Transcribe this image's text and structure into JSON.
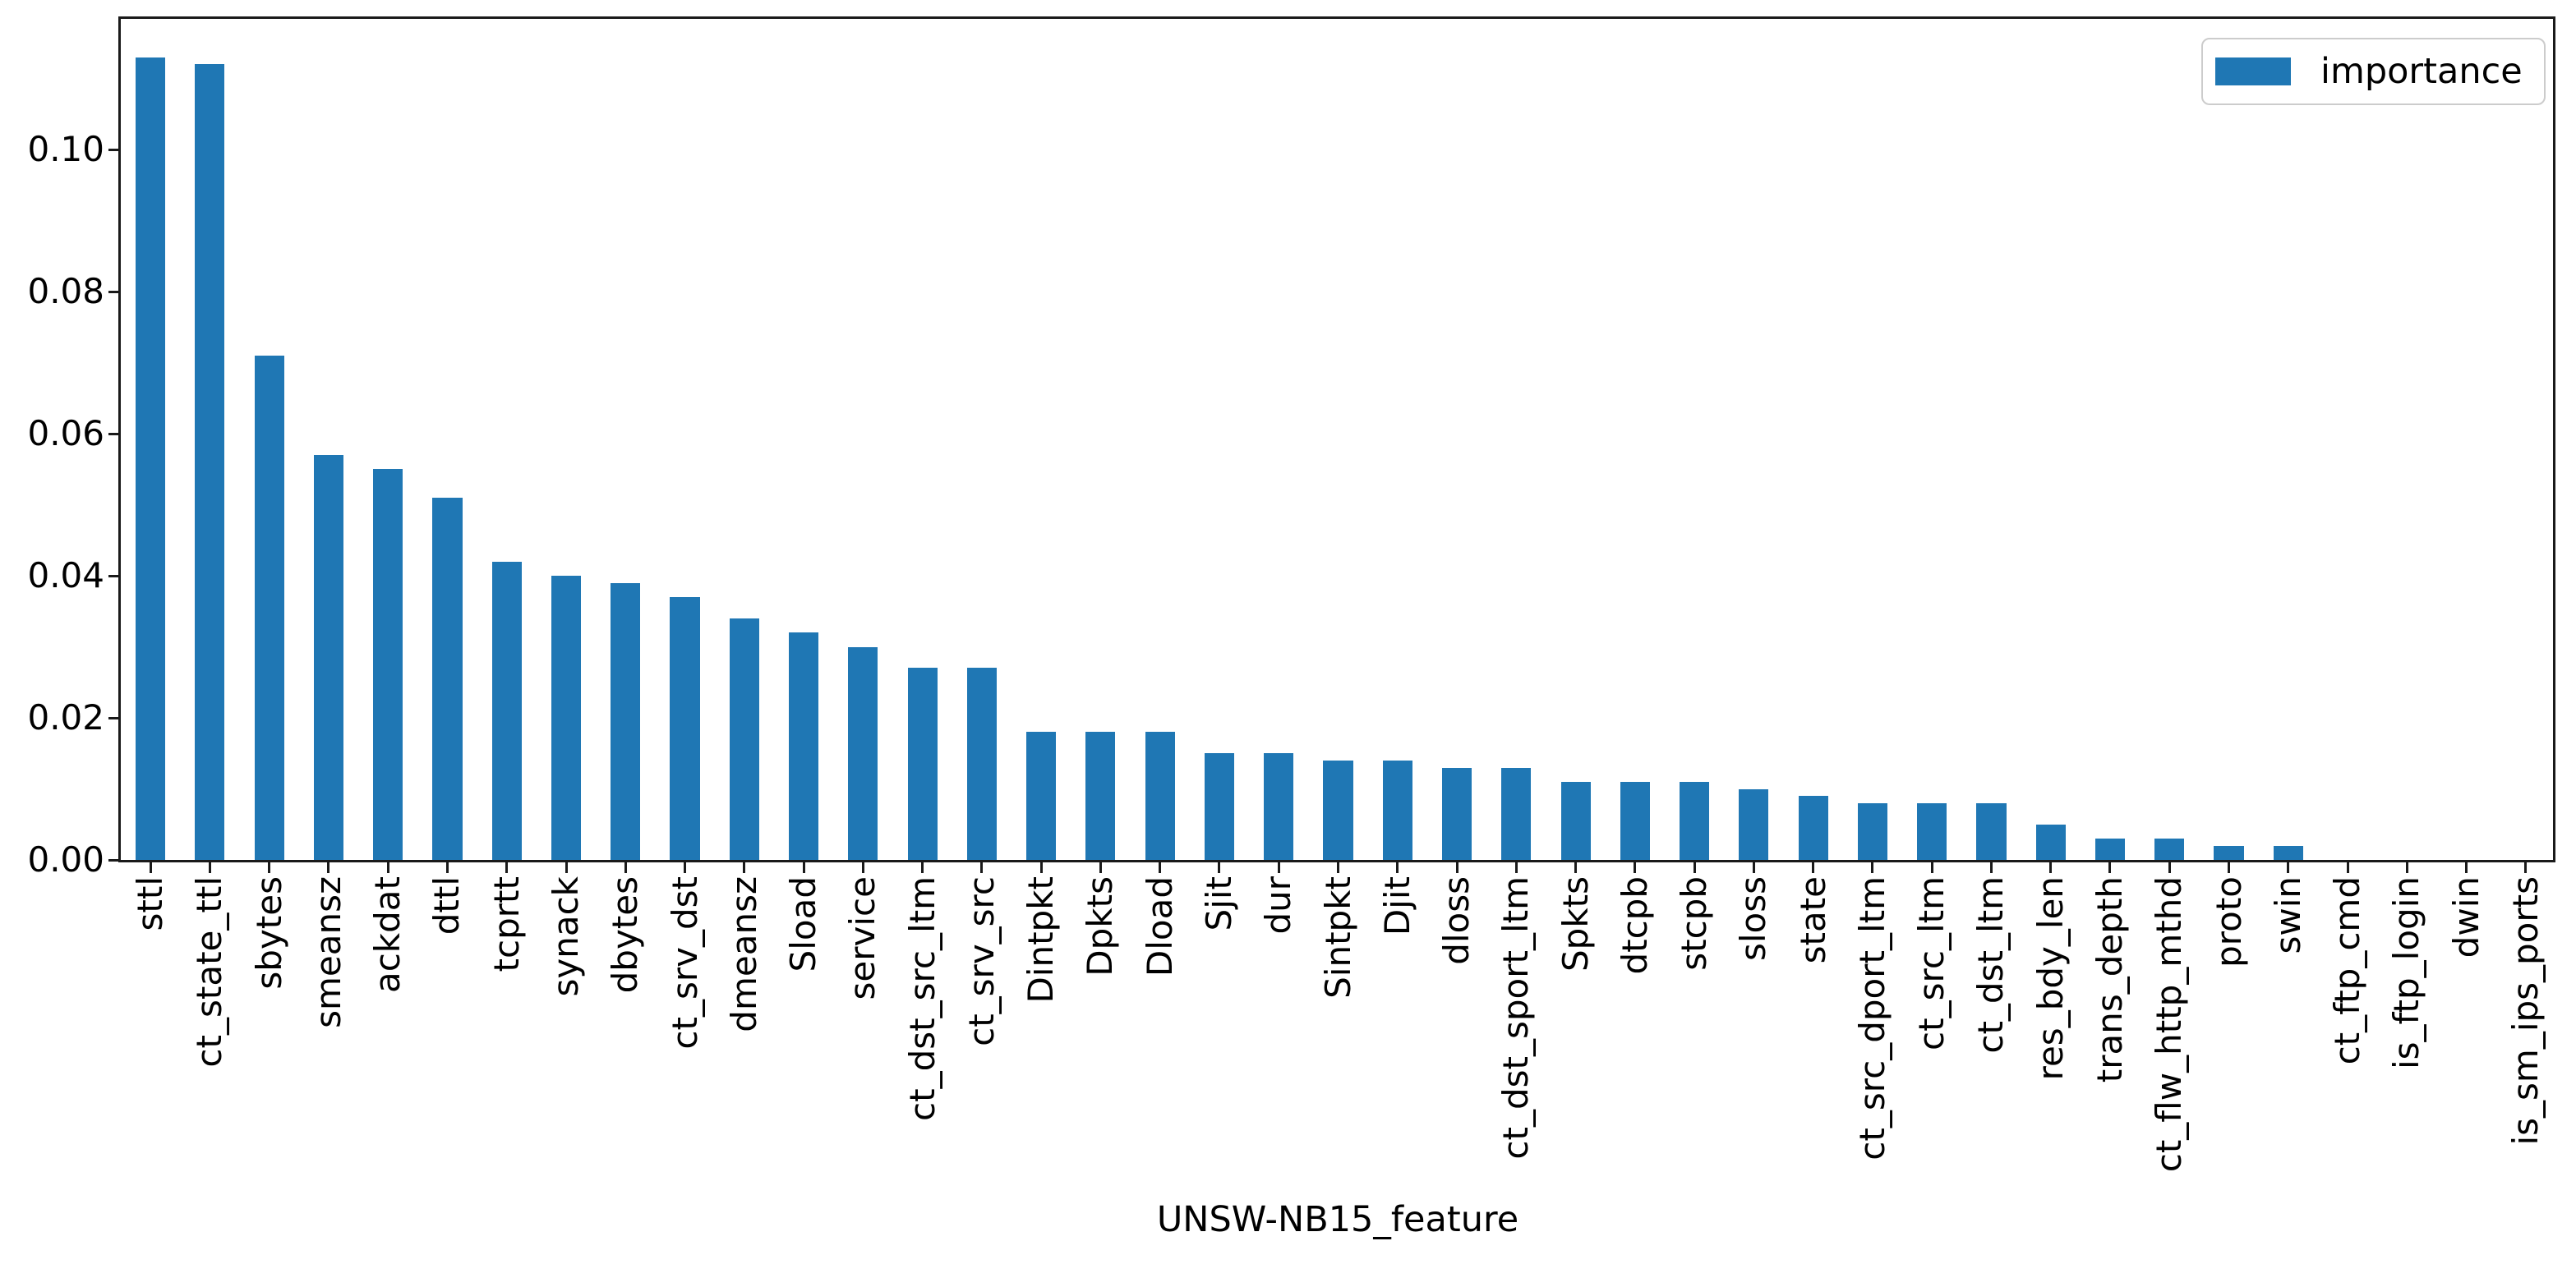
{
  "figure": {
    "background": "#ffffff",
    "spine_color": "#1a1a1a",
    "accent": "#1f77b4"
  },
  "chart_data": {
    "type": "bar",
    "title": "",
    "xlabel": "UNSW-NB15_feature",
    "ylabel": "",
    "grid": false,
    "legend": {
      "label": "importance",
      "position": "upper right",
      "swatch_color": "#1f77b4"
    },
    "bar_color": "#1f77b4",
    "ylim": [
      0,
      0.1184
    ],
    "y_ticks": [
      "0.00",
      "0.02",
      "0.04",
      "0.06",
      "0.08",
      "0.10"
    ],
    "y_tick_values": [
      0.0,
      0.02,
      0.04,
      0.06,
      0.08,
      0.1
    ],
    "categories": [
      "sttl",
      "ct_state_ttl",
      "sbytes",
      "smeansz",
      "ackdat",
      "dttl",
      "tcprtt",
      "synack",
      "dbytes",
      "ct_srv_dst",
      "dmeansz",
      "Sload",
      "service",
      "ct_dst_src_ltm",
      "ct_srv_src",
      "Dintpkt",
      "Dpkts",
      "Dload",
      "Sjit",
      "dur",
      "Sintpkt",
      "Djit",
      "dloss",
      "ct_dst_sport_ltm",
      "Spkts",
      "dtcpb",
      "stcpb",
      "sloss",
      "state",
      "ct_src_dport_ltm",
      "ct_src_ltm",
      "ct_dst_ltm",
      "res_bdy_len",
      "trans_depth",
      "ct_flw_http_mthd",
      "proto",
      "swin",
      "ct_ftp_cmd",
      "is_ftp_login",
      "dwin",
      "is_sm_ips_ports"
    ],
    "values": [
      0.113,
      0.112,
      0.071,
      0.057,
      0.055,
      0.051,
      0.042,
      0.04,
      0.039,
      0.037,
      0.034,
      0.032,
      0.03,
      0.027,
      0.027,
      0.018,
      0.018,
      0.018,
      0.015,
      0.015,
      0.014,
      0.014,
      0.013,
      0.013,
      0.011,
      0.011,
      0.011,
      0.01,
      0.009,
      0.008,
      0.008,
      0.008,
      0.005,
      0.003,
      0.003,
      0.002,
      0.002,
      0.0,
      0.0,
      0.0,
      0.0
    ]
  }
}
